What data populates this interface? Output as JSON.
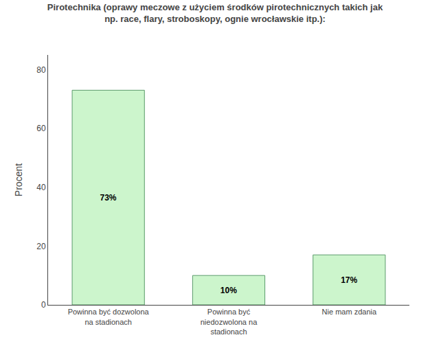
{
  "chart_data": {
    "type": "bar",
    "title": "Pirotechnika (oprawy meczowe z użyciem środków pirotechnicznych takich jak\nnp. race, flary, stroboskopy, ognie wrocławskie itp.):",
    "categories": [
      "Powinna być dozwolona\nna stadionach",
      "Powinna być\nniedozwolona na\nstadionach",
      "Nie mam zdania"
    ],
    "values": [
      73,
      10,
      17
    ],
    "value_labels": [
      "73%",
      "10%",
      "17%"
    ],
    "data_labels": true,
    "ylabel": "Procent",
    "ylim": [
      0,
      85
    ],
    "yticks": [
      0,
      20,
      40,
      60,
      80
    ],
    "color": "#ccf5cc",
    "grid": false
  }
}
